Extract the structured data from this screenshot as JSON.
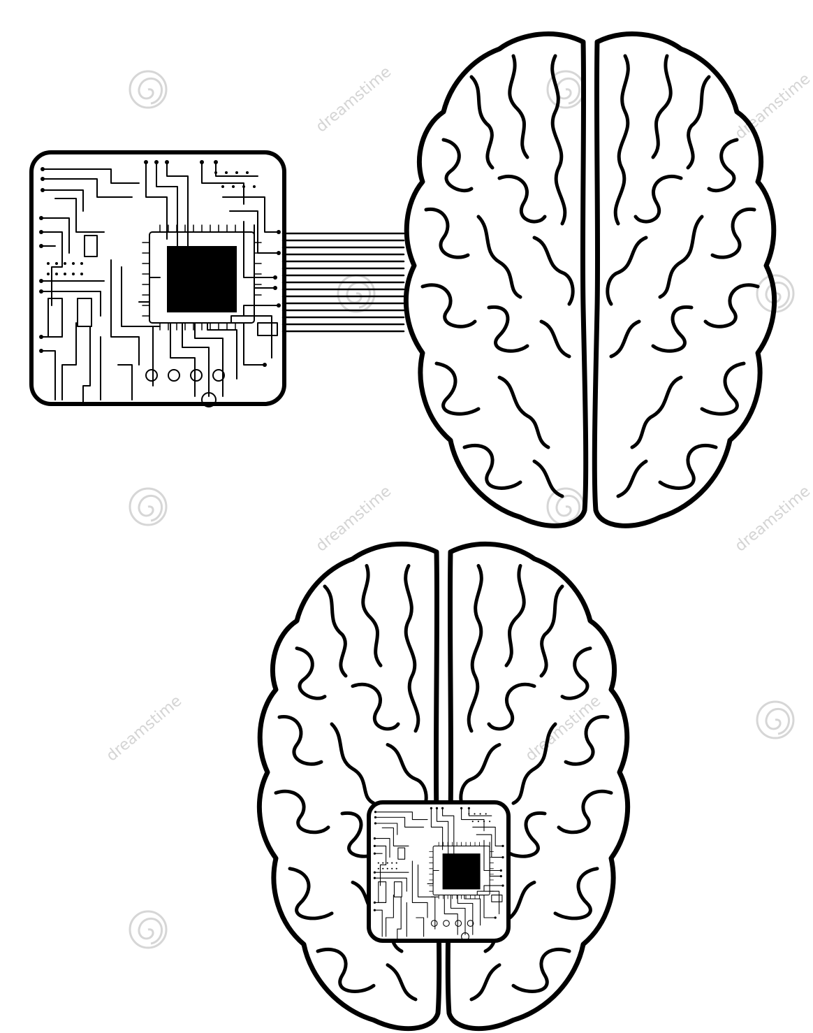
{
  "illustration": {
    "subject": "brains-with-circuit-chips",
    "background_color": "#ffffff",
    "ink_color": "#000000",
    "watermark_color": "#cfcfcf"
  },
  "watermark": {
    "text": "dreamstime",
    "icon": "spiral-logo-icon"
  }
}
